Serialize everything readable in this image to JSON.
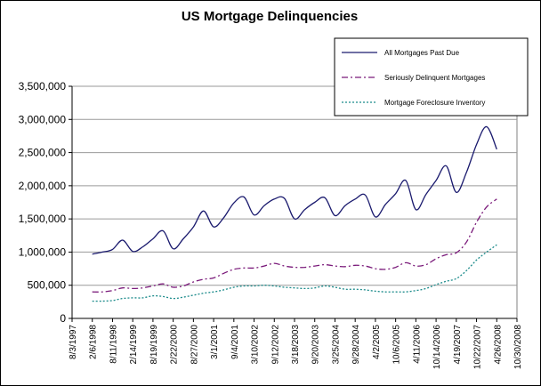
{
  "chart_data": {
    "type": "line",
    "title": "US Mortgage Delinquencies",
    "xlabel": "",
    "ylabel": "",
    "ylim": [
      0,
      3500000
    ],
    "yticks": [
      "0",
      "500,000",
      "1,000,000",
      "1,500,000",
      "2,000,000",
      "2,500,000",
      "3,000,000",
      "3,500,000"
    ],
    "x_tick_labels": [
      "8/3/1997",
      "2/6/1998",
      "8/11/1998",
      "2/14/1999",
      "8/19/1999",
      "2/22/2000",
      "8/27/2000",
      "3/1/2001",
      "9/4/2001",
      "3/10/2002",
      "9/12/2002",
      "3/18/2003",
      "9/20/2003",
      "3/25/2004",
      "9/28/2004",
      "4/2/2005",
      "10/6/2005",
      "4/11/2006",
      "10/14/2006",
      "4/19/2007",
      "10/22/2007",
      "4/26/2008",
      "10/30/2008"
    ],
    "x_tick_values": [
      0,
      1,
      2,
      3,
      4,
      5,
      6,
      7,
      8,
      9,
      10,
      11,
      12,
      13,
      14,
      15,
      16,
      17,
      18,
      19,
      20,
      21,
      22
    ],
    "grid": "horizontal",
    "legend_position": "top-right",
    "series": [
      {
        "name": "All Mortgages Past Due",
        "color": "#1a1a6e",
        "style": "solid",
        "points": [
          [
            1.0,
            970000
          ],
          [
            1.5,
            1000000
          ],
          [
            2.0,
            1040000
          ],
          [
            2.5,
            1180000
          ],
          [
            3.0,
            1010000
          ],
          [
            3.5,
            1080000
          ],
          [
            4.0,
            1200000
          ],
          [
            4.5,
            1320000
          ],
          [
            5.0,
            1050000
          ],
          [
            5.5,
            1200000
          ],
          [
            6.0,
            1380000
          ],
          [
            6.5,
            1620000
          ],
          [
            7.0,
            1380000
          ],
          [
            7.5,
            1520000
          ],
          [
            8.0,
            1740000
          ],
          [
            8.5,
            1830000
          ],
          [
            9.0,
            1560000
          ],
          [
            9.5,
            1700000
          ],
          [
            10.0,
            1800000
          ],
          [
            10.5,
            1810000
          ],
          [
            11.0,
            1500000
          ],
          [
            11.5,
            1640000
          ],
          [
            12.0,
            1750000
          ],
          [
            12.5,
            1820000
          ],
          [
            13.0,
            1550000
          ],
          [
            13.5,
            1700000
          ],
          [
            14.0,
            1800000
          ],
          [
            14.5,
            1860000
          ],
          [
            15.0,
            1530000
          ],
          [
            15.5,
            1720000
          ],
          [
            16.0,
            1880000
          ],
          [
            16.5,
            2080000
          ],
          [
            17.0,
            1640000
          ],
          [
            17.5,
            1870000
          ],
          [
            18.0,
            2080000
          ],
          [
            18.5,
            2300000
          ],
          [
            19.0,
            1900000
          ],
          [
            19.5,
            2200000
          ],
          [
            20.0,
            2620000
          ],
          [
            20.5,
            2890000
          ],
          [
            21.0,
            2550000
          ]
        ]
      },
      {
        "name": "Seriously Delinquent Mortgages",
        "color": "#7a1a7a",
        "style": "dashdot",
        "points": [
          [
            1.0,
            400000
          ],
          [
            1.5,
            400000
          ],
          [
            2.0,
            420000
          ],
          [
            2.5,
            460000
          ],
          [
            3.0,
            450000
          ],
          [
            3.5,
            460000
          ],
          [
            4.0,
            490000
          ],
          [
            4.5,
            520000
          ],
          [
            5.0,
            470000
          ],
          [
            5.5,
            490000
          ],
          [
            6.0,
            550000
          ],
          [
            6.5,
            590000
          ],
          [
            7.0,
            610000
          ],
          [
            7.5,
            680000
          ],
          [
            8.0,
            740000
          ],
          [
            8.5,
            760000
          ],
          [
            9.0,
            760000
          ],
          [
            9.5,
            790000
          ],
          [
            10.0,
            830000
          ],
          [
            10.5,
            790000
          ],
          [
            11.0,
            770000
          ],
          [
            11.5,
            770000
          ],
          [
            12.0,
            790000
          ],
          [
            12.5,
            810000
          ],
          [
            13.0,
            790000
          ],
          [
            13.5,
            780000
          ],
          [
            14.0,
            800000
          ],
          [
            14.5,
            790000
          ],
          [
            15.0,
            750000
          ],
          [
            15.5,
            740000
          ],
          [
            16.0,
            770000
          ],
          [
            16.5,
            840000
          ],
          [
            17.0,
            790000
          ],
          [
            17.5,
            810000
          ],
          [
            18.0,
            900000
          ],
          [
            18.5,
            960000
          ],
          [
            19.0,
            990000
          ],
          [
            19.5,
            1150000
          ],
          [
            20.0,
            1450000
          ],
          [
            20.5,
            1680000
          ],
          [
            21.0,
            1800000
          ]
        ]
      },
      {
        "name": "Mortgage Foreclosure Inventory",
        "color": "#1a8a8a",
        "style": "dotted",
        "points": [
          [
            1.0,
            260000
          ],
          [
            1.5,
            260000
          ],
          [
            2.0,
            270000
          ],
          [
            2.5,
            300000
          ],
          [
            3.0,
            310000
          ],
          [
            3.5,
            310000
          ],
          [
            4.0,
            340000
          ],
          [
            4.5,
            330000
          ],
          [
            5.0,
            300000
          ],
          [
            5.5,
            320000
          ],
          [
            6.0,
            350000
          ],
          [
            6.5,
            380000
          ],
          [
            7.0,
            400000
          ],
          [
            7.5,
            430000
          ],
          [
            8.0,
            470000
          ],
          [
            8.5,
            490000
          ],
          [
            9.0,
            490000
          ],
          [
            9.5,
            500000
          ],
          [
            10.0,
            490000
          ],
          [
            10.5,
            470000
          ],
          [
            11.0,
            460000
          ],
          [
            11.5,
            450000
          ],
          [
            12.0,
            460000
          ],
          [
            12.5,
            490000
          ],
          [
            13.0,
            470000
          ],
          [
            13.5,
            440000
          ],
          [
            14.0,
            440000
          ],
          [
            14.5,
            430000
          ],
          [
            15.0,
            410000
          ],
          [
            15.5,
            400000
          ],
          [
            16.0,
            400000
          ],
          [
            16.5,
            400000
          ],
          [
            17.0,
            420000
          ],
          [
            17.5,
            450000
          ],
          [
            18.0,
            510000
          ],
          [
            18.5,
            560000
          ],
          [
            19.0,
            600000
          ],
          [
            19.5,
            720000
          ],
          [
            20.0,
            880000
          ],
          [
            20.5,
            1000000
          ],
          [
            21.0,
            1110000
          ]
        ]
      }
    ]
  }
}
